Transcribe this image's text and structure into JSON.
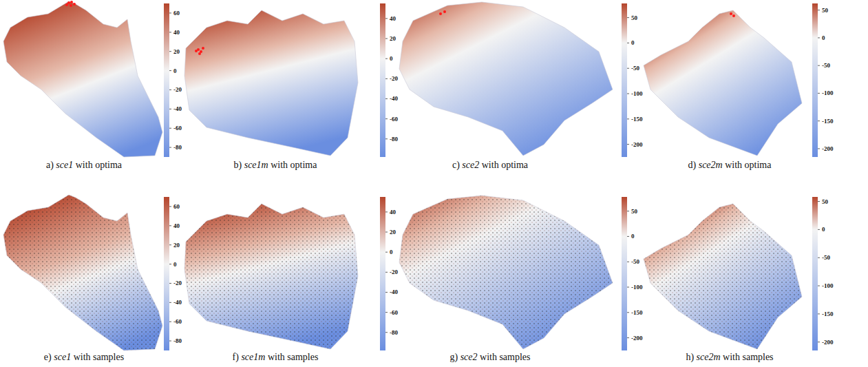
{
  "chart_data": [
    {
      "type": "surface",
      "title": "a) sce1 with optima",
      "marker": "optima",
      "colorbar": {
        "range": [
          -90,
          70
        ],
        "ticks": [
          -80,
          -60,
          -40,
          -20,
          0,
          20,
          40,
          60
        ]
      }
    },
    {
      "type": "surface",
      "title": "b) sce1m with optima",
      "marker": "optima",
      "colorbar": {
        "range": [
          -98,
          55
        ],
        "ticks": [
          -80,
          -60,
          -40,
          -20,
          0,
          20,
          40
        ]
      }
    },
    {
      "type": "surface",
      "title": "c) sce2 with optima",
      "marker": "optima",
      "colorbar": {
        "range": [
          -225,
          78
        ],
        "ticks": [
          -200,
          -150,
          -100,
          -50,
          0,
          50
        ]
      }
    },
    {
      "type": "surface",
      "title": "d) sce2m with optima",
      "marker": "optima",
      "colorbar": {
        "range": [
          -215,
          62
        ],
        "ticks": [
          -200,
          -150,
          -100,
          -50,
          0,
          50
        ]
      }
    },
    {
      "type": "surface",
      "title": "e) sce1 with samples",
      "marker": "samples",
      "colorbar": {
        "range": [
          -90,
          70
        ],
        "ticks": [
          -80,
          -60,
          -40,
          -20,
          0,
          20,
          40,
          60
        ]
      }
    },
    {
      "type": "surface",
      "title": "f) sce1m with samples",
      "marker": "samples",
      "colorbar": {
        "range": [
          -98,
          55
        ],
        "ticks": [
          -80,
          -60,
          -40,
          -20,
          0,
          20,
          40
        ]
      }
    },
    {
      "type": "surface",
      "title": "g) sce2 with samples",
      "marker": "samples",
      "colorbar": {
        "range": [
          -225,
          78
        ],
        "ticks": [
          -200,
          -150,
          -100,
          -50,
          0,
          50
        ]
      }
    },
    {
      "type": "surface",
      "title": "h) sce2m with samples",
      "marker": "samples",
      "colorbar": {
        "range": [
          -215,
          58
        ],
        "ticks": [
          -200,
          -150,
          -100,
          -50,
          0,
          50
        ]
      }
    }
  ]
}
